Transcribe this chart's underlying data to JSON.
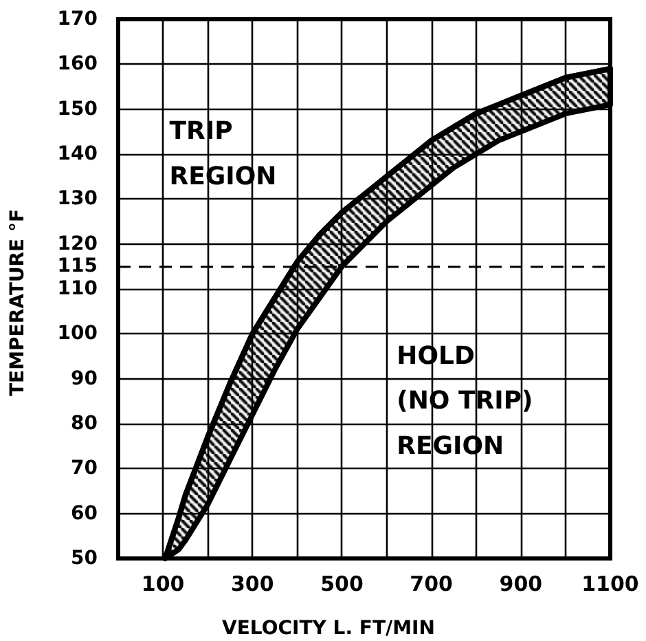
{
  "chart_data": {
    "type": "line",
    "xlabel": "VELOCITY L. FT/MIN",
    "ylabel": "TEMPERATURE °F",
    "x": [
      105,
      135,
      150,
      200,
      250,
      300,
      350,
      400,
      450,
      500,
      550,
      600,
      650,
      700,
      750,
      800,
      850,
      900,
      950,
      1000,
      1050,
      1100
    ],
    "series": [
      {
        "color": "#000000",
        "values": [
          50,
          59,
          64,
          77,
          89,
          100,
          108,
          116,
          122,
          127,
          131,
          135,
          139,
          143,
          146,
          149,
          151,
          153,
          155,
          157,
          158,
          159
        ],
        "upper": [
          50,
          59,
          64,
          77,
          89,
          100,
          108,
          116,
          122,
          127,
          131,
          135,
          139,
          143,
          146,
          149,
          151,
          153,
          155,
          157,
          158,
          159
        ],
        "lower": [
          50,
          52,
          54,
          62,
          72,
          82,
          92,
          101,
          108,
          115,
          120,
          125,
          129,
          133,
          137,
          140,
          143,
          145,
          147,
          149,
          150,
          151
        ]
      }
    ],
    "xlim": [
      0,
      1100
    ],
    "ylim": [
      50,
      170
    ],
    "xticks": [
      100,
      {
        "value": 200,
        "label": null
      },
      300,
      {
        "value": 400,
        "label": null
      },
      500,
      {
        "value": 600,
        "label": null
      },
      700,
      {
        "value": 800,
        "label": null
      },
      900,
      {
        "value": 1000,
        "label": null
      },
      1100
    ],
    "yticks": [
      50,
      60,
      70,
      80,
      90,
      100,
      110,
      115,
      120,
      130,
      140,
      150,
      160,
      170
    ],
    "grid": true,
    "ref_lines": [
      {
        "axis": "y",
        "value": 115,
        "line_style": "dashed",
        "color": "#000000"
      }
    ],
    "annotations": [
      "TRIP\nREGION",
      "HOLD\n(NO TRIP)\nREGION"
    ]
  }
}
